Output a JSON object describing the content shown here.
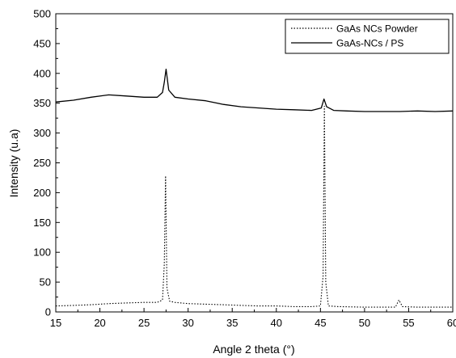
{
  "chart_data": {
    "type": "line",
    "xlabel": "Angle 2 theta (°)",
    "ylabel": "Intensity (u.a)",
    "xlim": [
      15,
      60
    ],
    "ylim": [
      0,
      500
    ],
    "x_ticks": [
      15,
      20,
      25,
      30,
      35,
      40,
      45,
      50,
      55,
      60
    ],
    "x_tick_labels": [
      "15",
      "20",
      "25",
      "30",
      "35",
      "40",
      "45",
      "50",
      "55",
      "60"
    ],
    "y_ticks": [
      0,
      50,
      100,
      150,
      200,
      250,
      300,
      350,
      400,
      450,
      500
    ],
    "y_tick_labels": [
      "0",
      "50",
      "100",
      "150",
      "200",
      "250",
      "300",
      "350",
      "400",
      "450",
      "500"
    ],
    "legend_position": "top-right",
    "series": [
      {
        "name": "GaAs NCs Powder",
        "line_style": "dotted",
        "color": "#000000",
        "x": [
          15,
          17,
          19,
          21,
          23,
          25,
          26.5,
          27.1,
          27.3,
          27.45,
          27.6,
          27.9,
          28.5,
          30,
          32,
          34,
          36,
          38,
          40,
          42,
          44,
          45.0,
          45.3,
          45.45,
          45.6,
          45.9,
          47,
          50,
          52,
          53.5,
          53.9,
          54.3,
          56,
          58,
          60
        ],
        "values": [
          10,
          11,
          12,
          14,
          15,
          16,
          16,
          20,
          80,
          228,
          40,
          18,
          16,
          14,
          13,
          12,
          11,
          10,
          10,
          9,
          9,
          10,
          60,
          345,
          50,
          10,
          9,
          8,
          8,
          8,
          20,
          9,
          8,
          8,
          8
        ]
      },
      {
        "name": "GaAs-NCs / PS",
        "line_style": "solid",
        "color": "#000000",
        "x": [
          15,
          17,
          19,
          21,
          23,
          25,
          26.5,
          27.1,
          27.3,
          27.5,
          27.8,
          28.5,
          30,
          32,
          34,
          36,
          38,
          40,
          42,
          44,
          45.1,
          45.4,
          45.7,
          46.5,
          48,
          50,
          52,
          54,
          56,
          58,
          60
        ],
        "values": [
          352,
          355,
          360,
          364,
          362,
          360,
          360,
          368,
          385,
          407,
          372,
          360,
          357,
          354,
          348,
          344,
          342,
          340,
          339,
          338,
          342,
          357,
          344,
          338,
          337,
          336,
          336,
          336,
          337,
          336,
          337
        ]
      }
    ]
  }
}
